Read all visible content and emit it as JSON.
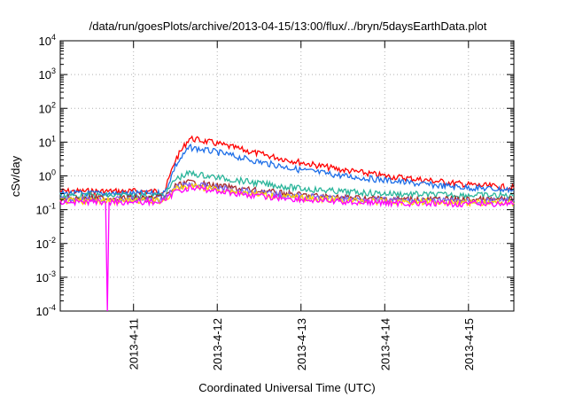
{
  "chart_data": {
    "type": "line",
    "title": "/data/run/goesPlots/archive/2013-04-15/13:00/flux/../bryn/5daysEarthData.plot",
    "xlabel": "Coordinated Universal Time (UTC)",
    "ylabel": "cSv/day",
    "yscale": "log",
    "ylim": [
      0.0001,
      10000
    ],
    "xlim": [
      "2013-04-10 03:00",
      "2013-04-15 13:00"
    ],
    "grid": true,
    "legend": "none",
    "x_ticks": [
      "2013-4-11",
      "2013-4-12",
      "2013-4-13",
      "2013-4-14",
      "2013-4-15"
    ],
    "y_ticks": [
      {
        "base": "10",
        "exp": "-4"
      },
      {
        "base": "10",
        "exp": "-3"
      },
      {
        "base": "10",
        "exp": "-2"
      },
      {
        "base": "10",
        "exp": "-1"
      },
      {
        "base": "10",
        "exp": "0"
      },
      {
        "base": "10",
        "exp": "1"
      },
      {
        "base": "10",
        "exp": "2"
      },
      {
        "base": "10",
        "exp": "3"
      },
      {
        "base": "10",
        "exp": "4"
      }
    ],
    "series": [
      {
        "color": "#ff0000",
        "x": [
          "2013-04-10 03:00",
          "2013-04-11 06:00",
          "2013-04-11 09:00",
          "2013-04-11 12:00",
          "2013-04-11 16:00",
          "2013-04-12 00:00",
          "2013-04-12 12:00",
          "2013-04-13 00:00",
          "2013-04-13 12:00",
          "2013-04-14 00:00",
          "2013-04-14 12:00",
          "2013-04-15 00:00",
          "2013-04-15 13:00"
        ],
        "y": [
          0.35,
          0.35,
          0.37,
          3.0,
          13.0,
          9.0,
          4.5,
          2.5,
          1.5,
          1.0,
          0.75,
          0.55,
          0.45
        ]
      },
      {
        "color": "#1e6fe8",
        "x": [
          "2013-04-10 03:00",
          "2013-04-11 06:00",
          "2013-04-11 09:00",
          "2013-04-11 12:00",
          "2013-04-11 16:00",
          "2013-04-12 00:00",
          "2013-04-12 12:00",
          "2013-04-13 00:00",
          "2013-04-13 12:00",
          "2013-04-14 00:00",
          "2013-04-14 12:00",
          "2013-04-15 00:00",
          "2013-04-15 13:00"
        ],
        "y": [
          0.3,
          0.3,
          0.32,
          2.0,
          7.0,
          5.0,
          2.6,
          1.5,
          1.0,
          0.75,
          0.55,
          0.45,
          0.38
        ]
      },
      {
        "color": "#2ab59a",
        "x": [
          "2013-04-10 03:00",
          "2013-04-11 06:00",
          "2013-04-11 09:00",
          "2013-04-11 12:00",
          "2013-04-11 16:00",
          "2013-04-12 00:00",
          "2013-04-12 12:00",
          "2013-04-13 00:00",
          "2013-04-13 12:00",
          "2013-04-14 00:00",
          "2013-04-14 12:00",
          "2013-04-15 00:00",
          "2013-04-15 13:00"
        ],
        "y": [
          0.26,
          0.26,
          0.27,
          0.8,
          1.2,
          0.9,
          0.6,
          0.42,
          0.34,
          0.3,
          0.28,
          0.27,
          0.26
        ]
      },
      {
        "color": "#a52a2a",
        "x": [
          "2013-04-10 03:00",
          "2013-04-11 06:00",
          "2013-04-11 09:00",
          "2013-04-11 12:00",
          "2013-04-11 16:00",
          "2013-04-12 00:00",
          "2013-04-12 12:00",
          "2013-04-13 00:00",
          "2013-04-13 12:00",
          "2013-04-14 00:00",
          "2013-04-14 12:00",
          "2013-04-15 00:00",
          "2013-04-15 13:00"
        ],
        "y": [
          0.22,
          0.22,
          0.23,
          0.5,
          0.65,
          0.5,
          0.36,
          0.27,
          0.23,
          0.21,
          0.2,
          0.2,
          0.2
        ]
      },
      {
        "color": "#7b68ee",
        "x": [
          "2013-04-10 03:00",
          "2013-04-11 06:00",
          "2013-04-11 09:00",
          "2013-04-11 12:00",
          "2013-04-11 16:00",
          "2013-04-12 00:00",
          "2013-04-12 12:00",
          "2013-04-13 00:00",
          "2013-04-13 12:00",
          "2013-04-14 00:00",
          "2013-04-14 12:00",
          "2013-04-15 00:00",
          "2013-04-15 13:00"
        ],
        "y": [
          0.2,
          0.2,
          0.21,
          0.45,
          0.58,
          0.45,
          0.32,
          0.25,
          0.21,
          0.19,
          0.18,
          0.18,
          0.18
        ]
      },
      {
        "color": "#ffd700",
        "x": [
          "2013-04-10 03:00",
          "2013-04-11 06:00",
          "2013-04-11 09:00",
          "2013-04-11 12:00",
          "2013-04-11 16:00",
          "2013-04-12 00:00",
          "2013-04-12 12:00",
          "2013-04-13 00:00",
          "2013-04-13 12:00",
          "2013-04-14 00:00",
          "2013-04-14 12:00",
          "2013-04-15 00:00",
          "2013-04-15 13:00"
        ],
        "y": [
          0.18,
          0.18,
          0.19,
          0.4,
          0.5,
          0.4,
          0.28,
          0.22,
          0.19,
          0.17,
          0.17,
          0.16,
          0.16
        ]
      },
      {
        "color": "#ff00ff",
        "x": [
          "2013-04-10 03:00",
          "2013-04-10 16:00",
          "2013-04-10 16:30",
          "2013-04-10 17:00",
          "2013-04-11 06:00",
          "2013-04-11 09:00",
          "2013-04-11 12:00",
          "2013-04-11 16:00",
          "2013-04-12 00:00",
          "2013-04-12 12:00",
          "2013-04-13 00:00",
          "2013-04-13 12:00",
          "2013-04-14 00:00",
          "2013-04-14 12:00",
          "2013-04-15 00:00",
          "2013-04-15 13:00"
        ],
        "y": [
          0.17,
          0.17,
          0.0001,
          0.17,
          0.17,
          0.18,
          0.35,
          0.45,
          0.36,
          0.25,
          0.2,
          0.17,
          0.16,
          0.15,
          0.15,
          0.15
        ]
      }
    ]
  }
}
